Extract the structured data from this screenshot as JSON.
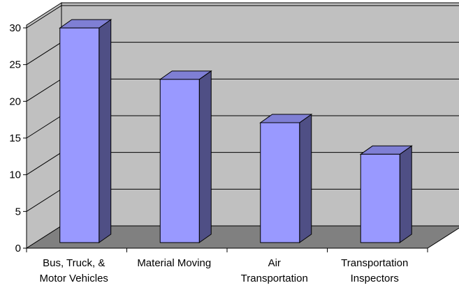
{
  "chart_data": {
    "type": "bar",
    "title": "",
    "xlabel": "",
    "ylabel": "",
    "categories": [
      [
        "Bus, Truck, &",
        "Motor Vehicles"
      ],
      [
        "Material Moving"
      ],
      [
        "Air",
        "Transportation"
      ],
      [
        "Transportation",
        "Inspectors"
      ]
    ],
    "values": [
      29.8,
      22.8,
      16.9,
      12.6
    ],
    "ylim": [
      0,
      30
    ],
    "yticks": [
      "0",
      "5",
      "10",
      "15",
      "20",
      "25",
      "30"
    ],
    "grid": true,
    "legend": "none",
    "style": "3d-column",
    "colors": {
      "bar_front": "#9999ff",
      "bar_side": "#4f4f85",
      "bar_top": "#7f7fd4",
      "back_wall": "#c0c0c0",
      "floor": "#808080",
      "gridline": "#000000"
    }
  }
}
